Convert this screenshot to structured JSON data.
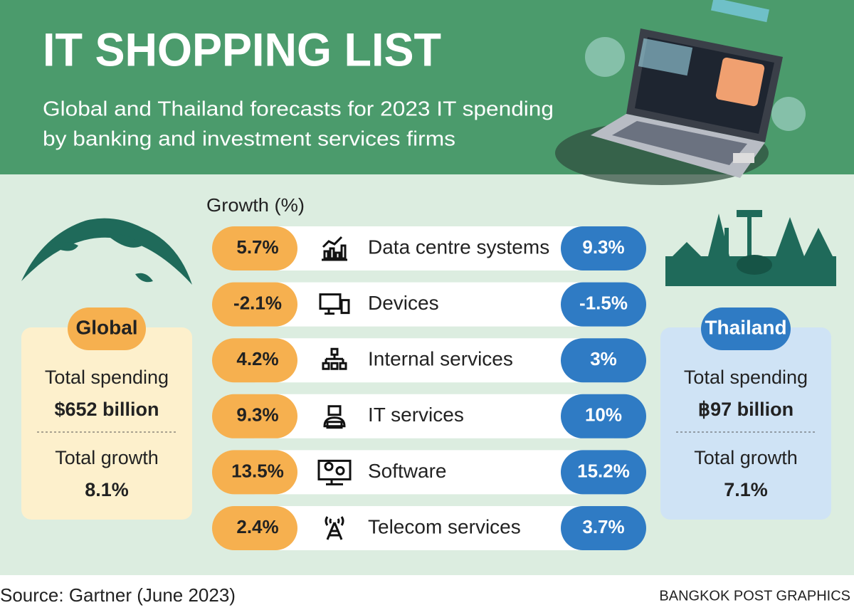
{
  "header": {
    "title": "IT SHOPPING LIST",
    "subtitle": [
      "Global and Thailand forecasts for 2023 IT spending",
      "by banking and investment services firms"
    ]
  },
  "growth_label": "Growth (%)",
  "rows": [
    {
      "global": "5.7%",
      "category": "Data centre systems",
      "thailand": "9.3%"
    },
    {
      "global": "-2.1%",
      "category": "Devices",
      "thailand": "-1.5%"
    },
    {
      "global": "4.2%",
      "category": "Internal services",
      "thailand": "3%"
    },
    {
      "global": "9.3%",
      "category": "IT services",
      "thailand": "10%"
    },
    {
      "global": "13.5%",
      "category": "Software",
      "thailand": "15.2%"
    },
    {
      "global": "2.4%",
      "category": "Telecom services",
      "thailand": "3.7%"
    }
  ],
  "global": {
    "label": "Global",
    "spending_label": "Total spending",
    "spending": "$652 billion",
    "growth_label": "Total growth",
    "growth": "8.1%"
  },
  "thailand": {
    "label": "Thailand",
    "spending_label": "Total spending",
    "spending": "฿97 billion",
    "growth_label": "Total growth",
    "growth": "7.1%"
  },
  "footer": {
    "source": "Source: Gartner (June 2023)",
    "credit": "BANGKOK POST GRAPHICS"
  }
}
